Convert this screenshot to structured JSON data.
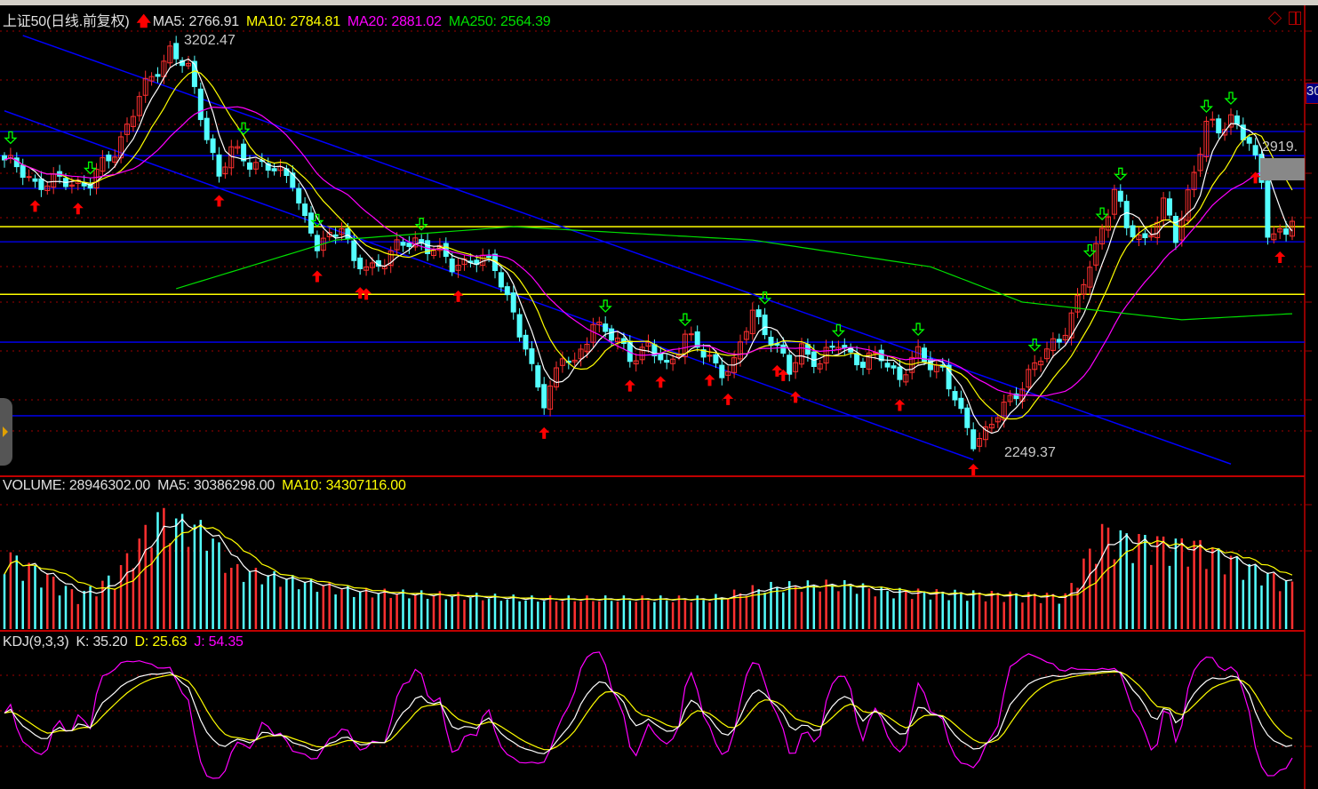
{
  "header": {
    "title": "上证50(日线.前复权)",
    "ma5": "MA5: 2766.91",
    "ma10": "MA10: 2784.81",
    "ma20": "MA20: 2881.02",
    "ma250": "MA250: 2564.39"
  },
  "volume_header": {
    "volume": "VOLUME: 28946302.00",
    "ma5": "MA5: 30386298.00",
    "ma10": "MA10: 34307116.00"
  },
  "kdj_header": {
    "name": "KDJ(9,3,3)",
    "k": "K: 35.20",
    "d": "D: 25.63",
    "j": "J: 54.35"
  },
  "annotations": {
    "high_label": "3202.47",
    "low_label": "2249.37",
    "right_price_label": "2919.",
    "axis_tag": "30"
  },
  "colors": {
    "up": "#ff3030",
    "down": "#54ffff",
    "ma5": "#ffffff",
    "ma10": "#ffff00",
    "ma20": "#ff00ff",
    "ma250": "#00e000",
    "trendline": "#0000ff",
    "support": "#ffff00",
    "grid": "#a00000"
  },
  "chart_data": [
    {
      "type": "candlestick",
      "bars": 211,
      "ylim": [
        2249.37,
        3202.47
      ],
      "high": 3202.47,
      "low": 2249.37,
      "close_path": [
        [
          0,
          2926
        ],
        [
          5,
          2874
        ],
        [
          14,
          2874
        ],
        [
          18,
          2947
        ],
        [
          22,
          3070
        ],
        [
          27,
          3184
        ],
        [
          30,
          3132
        ],
        [
          33,
          2988
        ],
        [
          35,
          2885
        ],
        [
          37,
          2947
        ],
        [
          43,
          2905
        ],
        [
          47,
          2885
        ],
        [
          49,
          2782
        ],
        [
          51,
          2720
        ],
        [
          55,
          2782
        ],
        [
          57,
          2678
        ],
        [
          60,
          2678
        ],
        [
          64,
          2720
        ],
        [
          67,
          2740
        ],
        [
          70,
          2720
        ],
        [
          73,
          2678
        ],
        [
          76,
          2699
        ],
        [
          80,
          2678
        ],
        [
          83,
          2575
        ],
        [
          86,
          2431
        ],
        [
          88,
          2369
        ],
        [
          91,
          2472
        ],
        [
          93,
          2441
        ],
        [
          96,
          2555
        ],
        [
          99,
          2513
        ],
        [
          102,
          2472
        ],
        [
          105,
          2493
        ],
        [
          108,
          2441
        ],
        [
          111,
          2524
        ],
        [
          114,
          2472
        ],
        [
          117,
          2441
        ],
        [
          119,
          2451
        ],
        [
          122,
          2575
        ],
        [
          125,
          2513
        ],
        [
          128,
          2431
        ],
        [
          130,
          2493
        ],
        [
          133,
          2451
        ],
        [
          136,
          2503
        ],
        [
          140,
          2451
        ],
        [
          143,
          2472
        ],
        [
          146,
          2421
        ],
        [
          149,
          2472
        ],
        [
          153,
          2441
        ],
        [
          156,
          2328
        ],
        [
          158,
          2276
        ],
        [
          160,
          2297
        ],
        [
          163,
          2348
        ],
        [
          167,
          2431
        ],
        [
          172,
          2513
        ],
        [
          175,
          2596
        ],
        [
          178,
          2720
        ],
        [
          181,
          2864
        ],
        [
          183,
          2761
        ],
        [
          186,
          2740
        ],
        [
          189,
          2823
        ],
        [
          191,
          2740
        ],
        [
          194,
          2905
        ],
        [
          196,
          3009
        ],
        [
          198,
          2988
        ],
        [
          200,
          3029
        ],
        [
          203,
          2967
        ],
        [
          205,
          2864
        ],
        [
          206,
          2761
        ],
        [
          209,
          2761
        ],
        [
          210,
          2792
        ]
      ],
      "ma250_path": [
        [
          28,
          2627
        ],
        [
          54,
          2740
        ],
        [
          83,
          2771
        ],
        [
          122,
          2740
        ],
        [
          151,
          2678
        ],
        [
          166,
          2596
        ],
        [
          192,
          2555
        ],
        [
          210,
          2569
        ]
      ],
      "horizontal_lines": {
        "yellow": [
          2771,
          2614
        ],
        "blue": [
          2992,
          2936,
          2860,
          2736,
          2503,
          2332
        ]
      },
      "trendlines": [
        [
          [
            3,
            3215
          ],
          [
            200,
            2220
          ]
        ],
        [
          [
            0,
            3040
          ],
          [
            158,
            2230
          ]
        ]
      ],
      "buy_signals": [
        5,
        12,
        35,
        51,
        58,
        59,
        74,
        88,
        102,
        107,
        115,
        118,
        126,
        127,
        129,
        146,
        158,
        204,
        208
      ],
      "sell_signals": [
        1,
        14,
        39,
        51,
        68,
        98,
        111,
        124,
        136,
        149,
        168,
        177,
        179,
        182,
        196,
        200
      ]
    },
    {
      "type": "bar",
      "name": "VOLUME",
      "volume_path_millions": [
        [
          0,
          50
        ],
        [
          7,
          35
        ],
        [
          12,
          22
        ],
        [
          18,
          35
        ],
        [
          25,
          75
        ],
        [
          33,
          65
        ],
        [
          37,
          40
        ],
        [
          57,
          25
        ],
        [
          86,
          20
        ],
        [
          115,
          20
        ],
        [
          124,
          28
        ],
        [
          136,
          30
        ],
        [
          144,
          25
        ],
        [
          173,
          22
        ],
        [
          179,
          65
        ],
        [
          183,
          60
        ],
        [
          195,
          55
        ],
        [
          210,
          29
        ]
      ],
      "ylim_millions": [
        0,
        85
      ]
    },
    {
      "type": "line",
      "name": "KDJ(9,3,3)",
      "series": [
        "K",
        "D",
        "J"
      ]
    }
  ]
}
